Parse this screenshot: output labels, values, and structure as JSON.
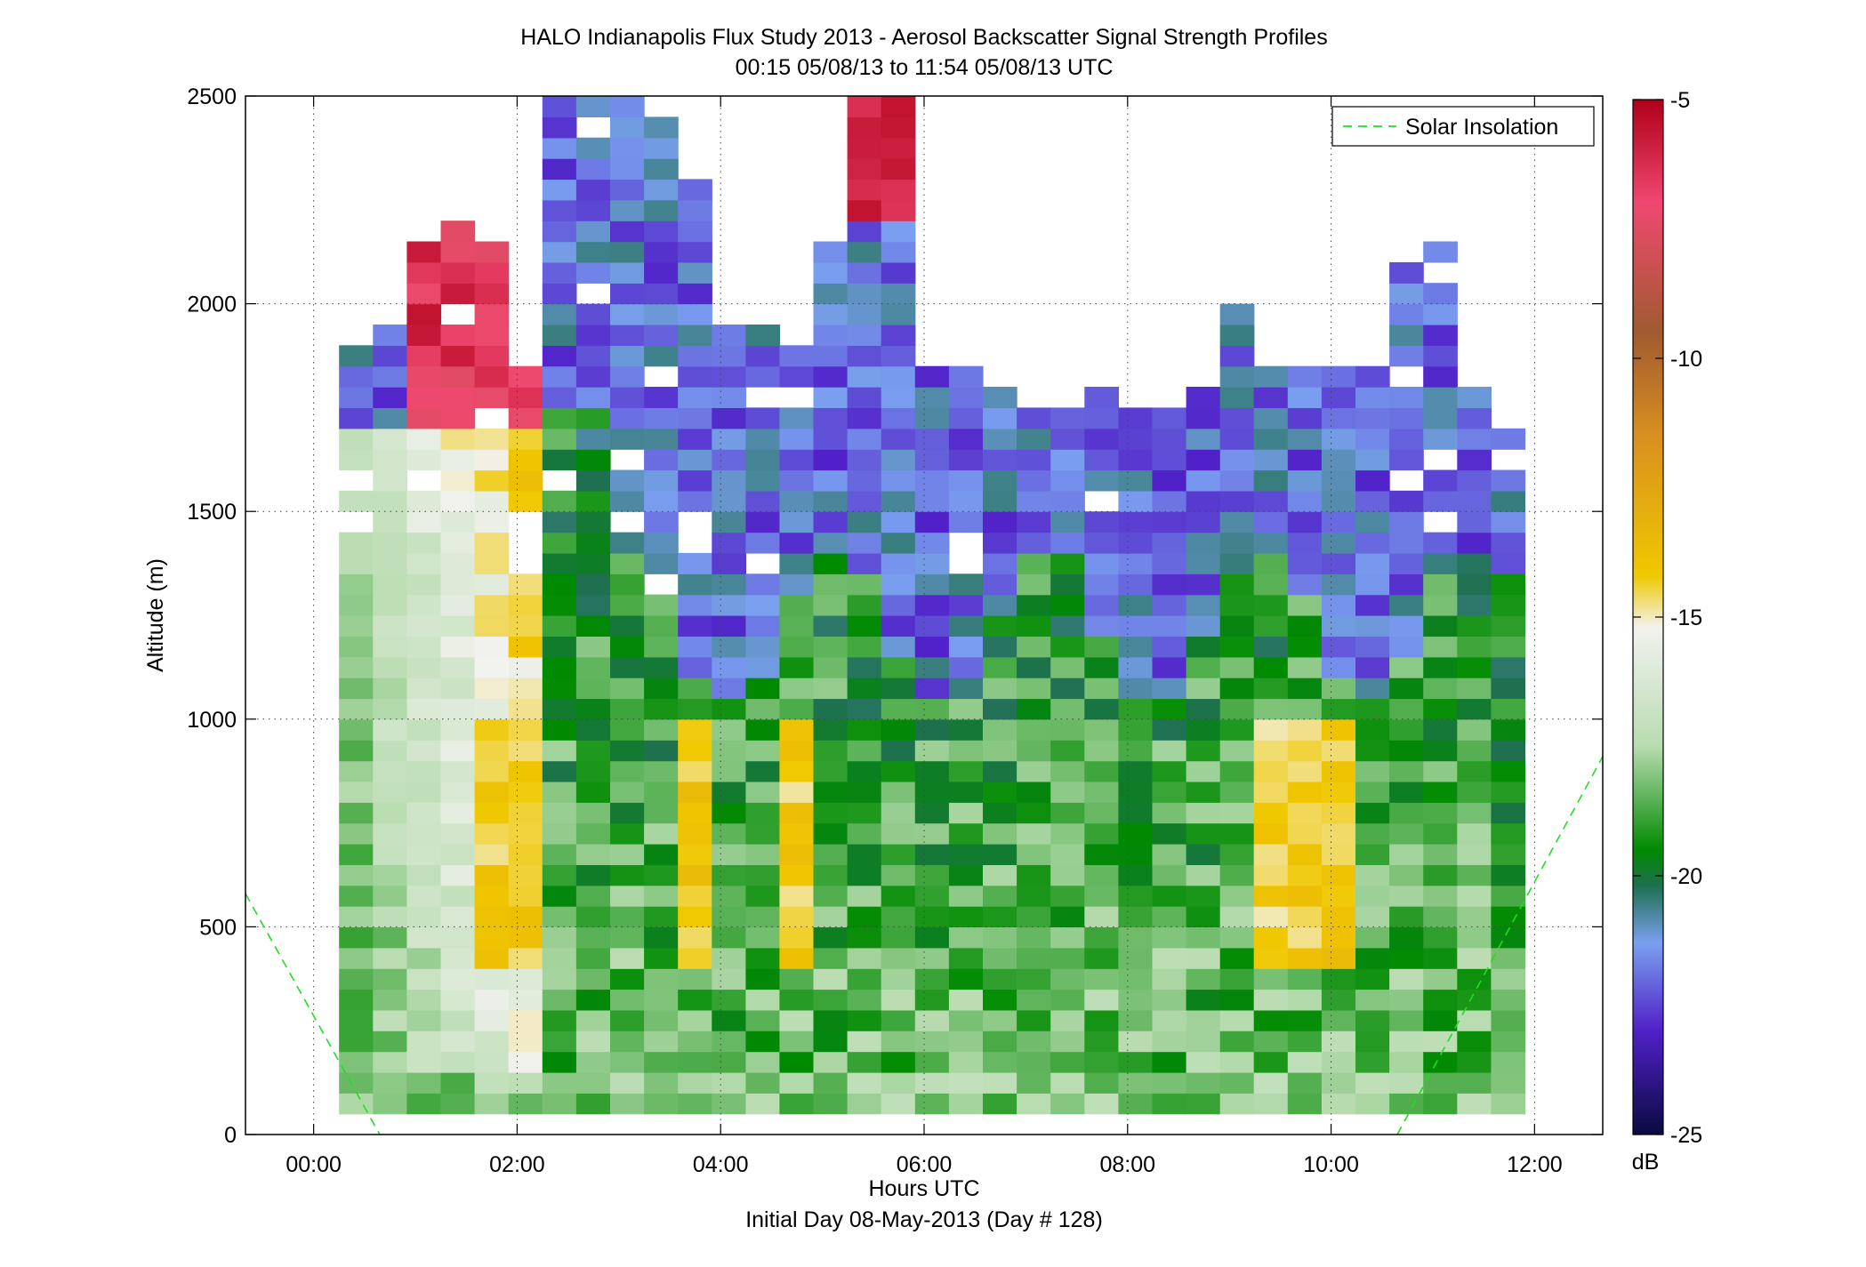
{
  "chart_data": {
    "type": "heatmap",
    "title": "HALO Indianapolis Flux Study 2013 - Aerosol Backscatter Signal Strength Profiles",
    "subtitle": "00:15 05/08/13 to 11:54 05/08/13  UTC",
    "xlabel": "Hours UTC",
    "xlabel2": "Initial Day 08-May-2013 (Day # 128)",
    "ylabel": "Altitude (m)",
    "x_ticks": [
      "00:00",
      "02:00",
      "04:00",
      "06:00",
      "08:00",
      "10:00",
      "12:00"
    ],
    "x_tick_hours": [
      0,
      2,
      4,
      6,
      8,
      10,
      12
    ],
    "xlim_hours": [
      -0.67,
      12.67
    ],
    "y_ticks": [
      0,
      500,
      1000,
      1500,
      2000,
      2500
    ],
    "ylim": [
      0,
      2500
    ],
    "grid": true,
    "legend": {
      "position": "top-right",
      "entries": [
        "Solar Insolation"
      ],
      "line_style": "dashed",
      "line_color": "#22dd22"
    },
    "colorbar": {
      "label": "dB",
      "ticks": [
        -5,
        -10,
        -15,
        -20,
        -25
      ],
      "range": [
        -25,
        -5
      ],
      "colors": {
        "low": "#0a0a40",
        "violet": "#5020c8",
        "blue": "#7aa0f0",
        "teal": "#1e7050",
        "green": "#008a00",
        "light_green": "#b8dcb0",
        "pale": "#f2f2ee",
        "yellow": "#f0c800",
        "orange": "#d89020",
        "brown": "#a05a30",
        "pink": "#f04870",
        "high": "#b00018"
      }
    },
    "time_start_hours": 0.25,
    "time_step_hours": 0.333,
    "alt_step_m": 50,
    "solar_insolation": {
      "before": [
        [
          -0.67,
          580
        ],
        [
          0.65,
          0
        ]
      ],
      "after": [
        [
          10.65,
          0
        ],
        [
          12.67,
          910
        ]
      ]
    },
    "regimes": [
      {
        "t": [
          0.25,
          2.0
        ],
        "desc": "aerosol layer with red top"
      },
      {
        "t": [
          2.0,
          12.0
        ],
        "desc": "mixed boundary layer"
      }
    ]
  }
}
